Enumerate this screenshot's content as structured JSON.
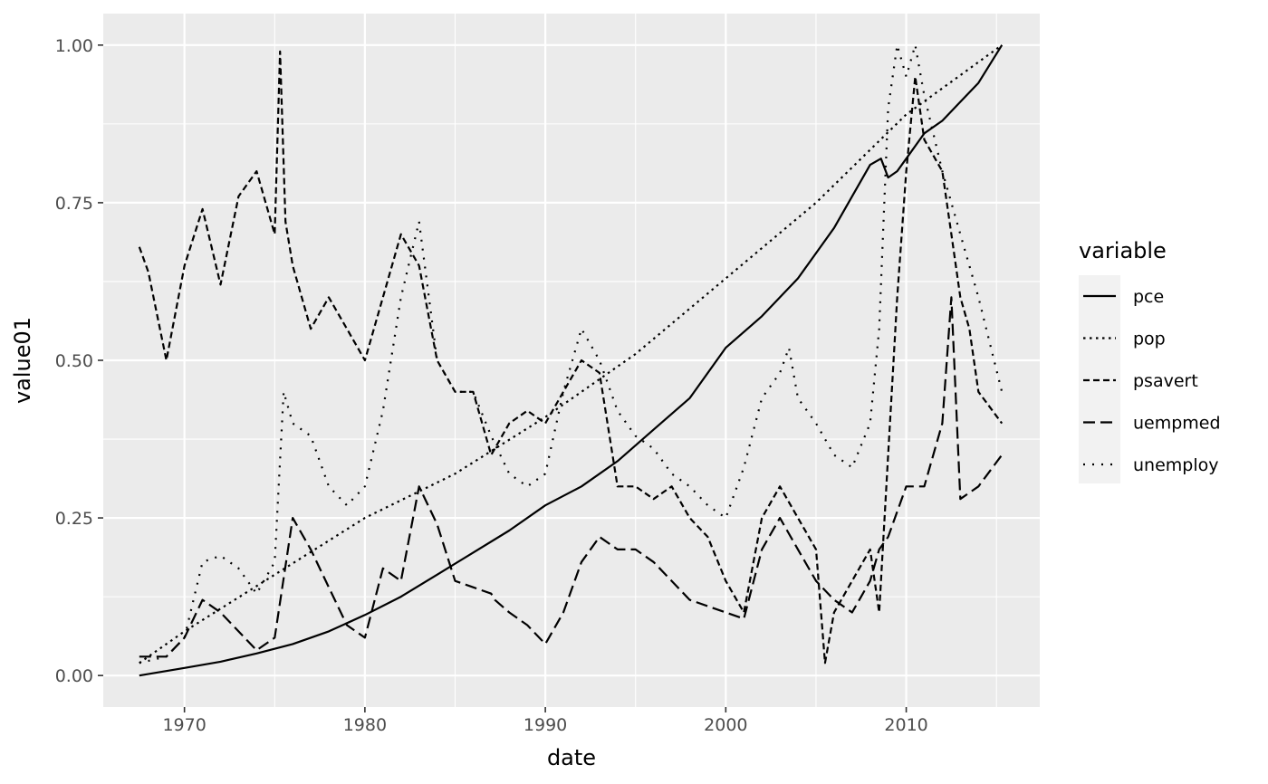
{
  "chart_data": {
    "type": "line",
    "title": "",
    "xlabel": "date",
    "ylabel": "value01",
    "xlim": [
      1965.5,
      2017.4
    ],
    "ylim": [
      -0.05,
      1.05
    ],
    "xticks": [
      1970,
      1980,
      1990,
      2000,
      2010
    ],
    "yticks": [
      0.0,
      0.25,
      0.5,
      0.75,
      1.0
    ],
    "ytick_labels": [
      "0.00",
      "0.25",
      "0.50",
      "0.75",
      "1.00"
    ],
    "grid": true,
    "legend": {
      "title": "variable",
      "position": "right"
    },
    "colors": {
      "panel": "#ebebeb",
      "grid": "#ffffff",
      "line": "#000000"
    },
    "series": [
      {
        "name": "pce",
        "linetype": "solid",
        "x": [
          1967.5,
          1970,
          1972,
          1974,
          1976,
          1978,
          1980,
          1982,
          1984,
          1986,
          1988,
          1990,
          1992,
          1994,
          1996,
          1998,
          2000,
          2002,
          2004,
          2006,
          2007,
          2008,
          2008.6,
          2009,
          2009.5,
          2010,
          2011,
          2012,
          2013,
          2014,
          2015.3
        ],
        "y": [
          0.0,
          0.012,
          0.022,
          0.035,
          0.05,
          0.07,
          0.096,
          0.125,
          0.16,
          0.195,
          0.23,
          0.27,
          0.3,
          0.34,
          0.39,
          0.44,
          0.52,
          0.57,
          0.63,
          0.71,
          0.76,
          0.81,
          0.82,
          0.79,
          0.8,
          0.82,
          0.86,
          0.88,
          0.91,
          0.94,
          1.0
        ]
      },
      {
        "name": "pop",
        "linetype": "dotted",
        "x": [
          1967.5,
          1970,
          1975,
          1980,
          1985,
          1990,
          1995,
          2000,
          2005,
          2010,
          2015.3
        ],
        "y": [
          0.02,
          0.07,
          0.16,
          0.25,
          0.32,
          0.41,
          0.51,
          0.63,
          0.75,
          0.89,
          1.0
        ]
      },
      {
        "name": "psavert",
        "linetype": "dashed",
        "x": [
          1967.5,
          1968,
          1969,
          1970,
          1971,
          1972,
          1973,
          1974,
          1975,
          1975.3,
          1975.6,
          1976,
          1977,
          1978,
          1979,
          1980,
          1981,
          1982,
          1983,
          1984,
          1985,
          1986,
          1987,
          1988,
          1989,
          1990,
          1991,
          1992,
          1993,
          1994,
          1995,
          1996,
          1997,
          1998,
          1999,
          2000,
          2001,
          2002,
          2003,
          2004,
          2005,
          2005.5,
          2006,
          2007,
          2008,
          2008.5,
          2009,
          2009.5,
          2010,
          2010.5,
          2011,
          2012,
          2012.5,
          2013,
          2013.5,
          2014,
          2015.3
        ],
        "y": [
          0.68,
          0.64,
          0.5,
          0.65,
          0.74,
          0.62,
          0.76,
          0.8,
          0.7,
          0.99,
          0.72,
          0.65,
          0.55,
          0.6,
          0.55,
          0.5,
          0.6,
          0.7,
          0.65,
          0.5,
          0.45,
          0.45,
          0.35,
          0.4,
          0.42,
          0.4,
          0.45,
          0.5,
          0.48,
          0.3,
          0.3,
          0.28,
          0.3,
          0.25,
          0.22,
          0.15,
          0.1,
          0.25,
          0.3,
          0.25,
          0.2,
          0.02,
          0.1,
          0.15,
          0.2,
          0.1,
          0.35,
          0.6,
          0.8,
          0.95,
          0.85,
          0.8,
          0.7,
          0.6,
          0.55,
          0.45,
          0.4
        ]
      },
      {
        "name": "uempmed",
        "linetype": "longdash",
        "x": [
          1967.5,
          1969,
          1970,
          1971,
          1972,
          1974,
          1975,
          1976,
          1977,
          1978,
          1979,
          1980,
          1981,
          1982,
          1983,
          1984,
          1985,
          1986,
          1987,
          1987.2,
          1988,
          1989,
          1990,
          1991,
          1992,
          1993,
          1994,
          1995,
          1996,
          1997,
          1998,
          2000,
          2001,
          2002,
          2003,
          2004,
          2005,
          2006,
          2007,
          2008,
          2008.5,
          2009,
          2010,
          2011,
          2012,
          2012.5,
          2013,
          2014,
          2015.3
        ],
        "y": [
          0.03,
          0.03,
          0.06,
          0.12,
          0.1,
          0.04,
          0.06,
          0.25,
          0.2,
          0.14,
          0.08,
          0.06,
          0.17,
          0.15,
          0.3,
          0.24,
          0.15,
          0.14,
          0.13,
          0.12,
          0.1,
          0.08,
          0.05,
          0.1,
          0.18,
          0.22,
          0.2,
          0.2,
          0.18,
          0.15,
          0.12,
          0.1,
          0.09,
          0.2,
          0.25,
          0.2,
          0.15,
          0.12,
          0.1,
          0.15,
          0.2,
          0.22,
          0.3,
          0.3,
          0.4,
          0.6,
          0.28,
          0.3,
          0.35
        ]
      },
      {
        "name": "unemploy",
        "linetype": "sparse-dotted",
        "x": [
          1967.5,
          1969,
          1970,
          1971,
          1972,
          1973,
          1974,
          1975,
          1975.5,
          1976,
          1977,
          1978,
          1979,
          1980,
          1981,
          1982,
          1983,
          1984,
          1985,
          1986,
          1987,
          1988,
          1989,
          1990,
          1991,
          1992,
          1993,
          1994,
          1995,
          1996,
          1997,
          1998,
          1999,
          2000,
          2001,
          2002,
          2003,
          2003.5,
          2004,
          2005,
          2006,
          2007,
          2008,
          2008.5,
          2009,
          2009.5,
          2010,
          2010.5,
          2011,
          2012,
          2013,
          2014,
          2015.3
        ],
        "y": [
          0.02,
          0.03,
          0.06,
          0.18,
          0.19,
          0.17,
          0.13,
          0.18,
          0.45,
          0.4,
          0.38,
          0.3,
          0.27,
          0.3,
          0.42,
          0.6,
          0.72,
          0.5,
          0.45,
          0.45,
          0.38,
          0.32,
          0.3,
          0.32,
          0.45,
          0.55,
          0.5,
          0.42,
          0.38,
          0.36,
          0.32,
          0.3,
          0.27,
          0.25,
          0.33,
          0.44,
          0.48,
          0.52,
          0.44,
          0.4,
          0.35,
          0.33,
          0.4,
          0.55,
          0.9,
          1.0,
          0.95,
          1.0,
          0.92,
          0.8,
          0.7,
          0.6,
          0.45
        ]
      }
    ]
  }
}
